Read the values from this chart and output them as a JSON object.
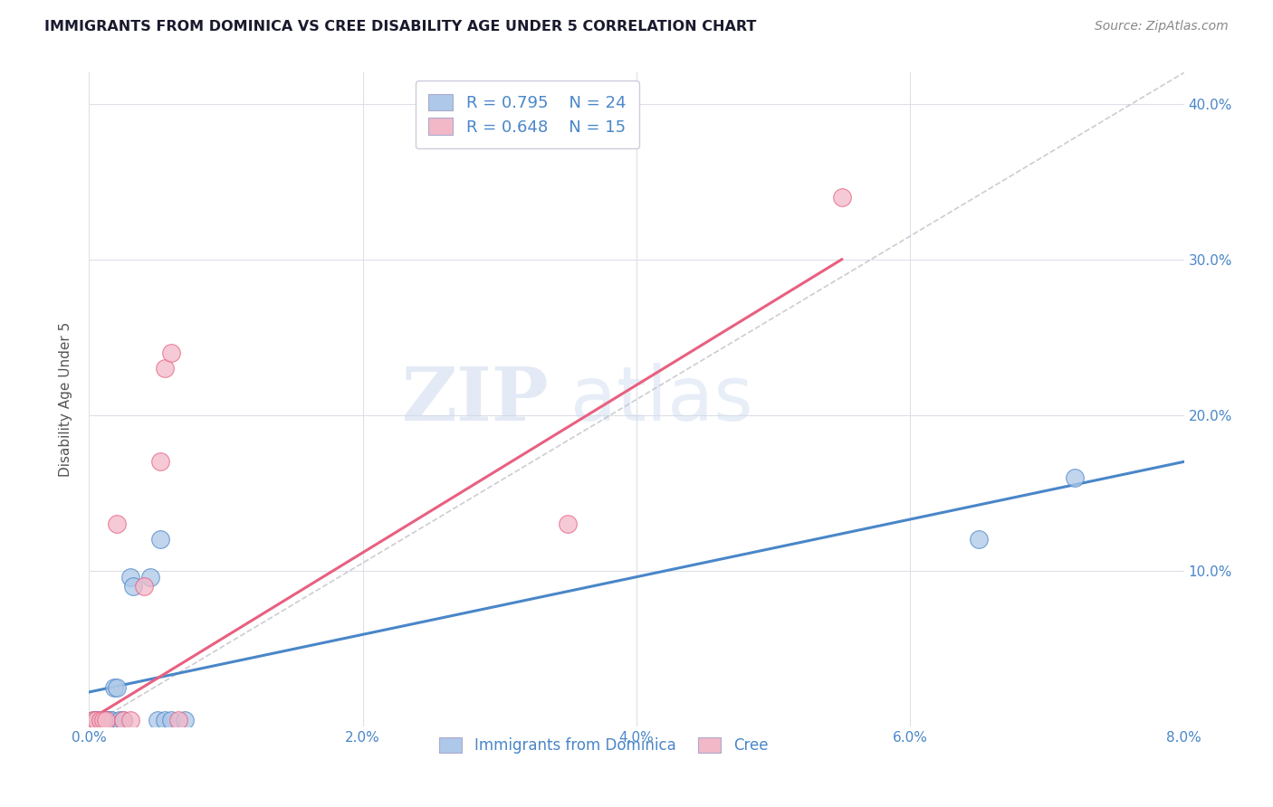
{
  "title": "IMMIGRANTS FROM DOMINICA VS CREE DISABILITY AGE UNDER 5 CORRELATION CHART",
  "source": "Source: ZipAtlas.com",
  "ylabel": "Disability Age Under 5",
  "watermark_zip": "ZIP",
  "watermark_atlas": "atlas",
  "xlim": [
    0.0,
    0.08
  ],
  "ylim": [
    0.0,
    0.42
  ],
  "xticks": [
    0.0,
    0.02,
    0.04,
    0.06,
    0.08
  ],
  "yticks_right": [
    0.1,
    0.2,
    0.3,
    0.4
  ],
  "legend_r1": "R = 0.795",
  "legend_n1": "N = 24",
  "legend_r2": "R = 0.648",
  "legend_n2": "N = 15",
  "blue_color": "#adc8e8",
  "pink_color": "#f2b8c8",
  "blue_line_color": "#4a86c8",
  "pink_line_color": "#e86080",
  "blue_scatter": [
    [
      0.0003,
      0.004
    ],
    [
      0.0005,
      0.004
    ],
    [
      0.0006,
      0.004
    ],
    [
      0.0008,
      0.004
    ],
    [
      0.001,
      0.004
    ],
    [
      0.0012,
      0.004
    ],
    [
      0.0013,
      0.004
    ],
    [
      0.0015,
      0.004
    ],
    [
      0.0016,
      0.004
    ],
    [
      0.0018,
      0.025
    ],
    [
      0.002,
      0.025
    ],
    [
      0.0022,
      0.004
    ],
    [
      0.0025,
      0.004
    ],
    [
      0.003,
      0.096
    ],
    [
      0.0032,
      0.09
    ],
    [
      0.0045,
      0.096
    ],
    [
      0.005,
      0.004
    ],
    [
      0.0052,
      0.12
    ],
    [
      0.0055,
      0.004
    ],
    [
      0.006,
      0.004
    ],
    [
      0.007,
      0.004
    ],
    [
      0.0005,
      0.004
    ],
    [
      0.065,
      0.12
    ],
    [
      0.072,
      0.16
    ]
  ],
  "pink_scatter": [
    [
      0.0003,
      0.004
    ],
    [
      0.0005,
      0.004
    ],
    [
      0.0008,
      0.004
    ],
    [
      0.001,
      0.004
    ],
    [
      0.0012,
      0.004
    ],
    [
      0.002,
      0.13
    ],
    [
      0.0025,
      0.004
    ],
    [
      0.003,
      0.004
    ],
    [
      0.004,
      0.09
    ],
    [
      0.0052,
      0.17
    ],
    [
      0.0055,
      0.23
    ],
    [
      0.006,
      0.24
    ],
    [
      0.0065,
      0.004
    ],
    [
      0.035,
      0.13
    ],
    [
      0.055,
      0.34
    ]
  ],
  "blue_line": [
    [
      0.0,
      0.022
    ],
    [
      0.08,
      0.17
    ]
  ],
  "pink_line": [
    [
      0.0,
      0.004
    ],
    [
      0.055,
      0.3
    ]
  ],
  "diag_line": [
    [
      0.0,
      0.0
    ],
    [
      0.08,
      0.42
    ]
  ],
  "background_color": "#ffffff",
  "grid_color": "#dde0e8"
}
